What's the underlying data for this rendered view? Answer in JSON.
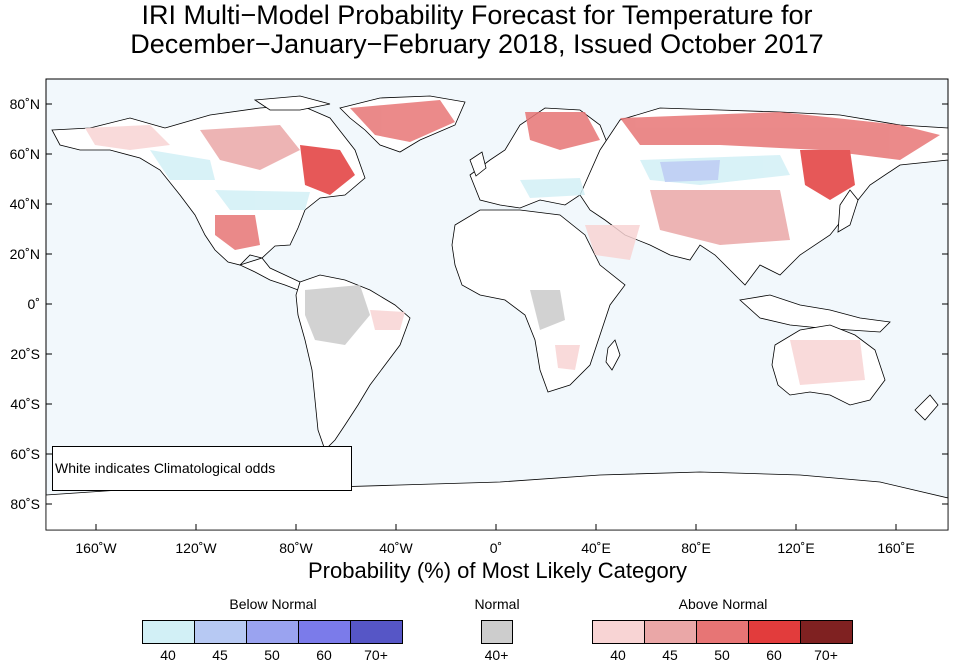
{
  "title": {
    "line1": "IRI Multi−Model Probability Forecast for Temperature for",
    "line2": "December−January−February 2018, Issued October 2017"
  },
  "axes": {
    "lat_labels": [
      "80˚N",
      "60˚N",
      "40˚N",
      "20˚N",
      "0˚",
      "20˚S",
      "40˚S",
      "60˚S",
      "80˚S"
    ],
    "lon_labels": [
      "160˚W",
      "120˚W",
      "80˚W",
      "40˚W",
      "0˚",
      "40˚E",
      "80˚E",
      "120˚E",
      "160˚E"
    ]
  },
  "note": "White indicates Climatological odds",
  "legend": {
    "title": "Probability (%) of Most Likely Category",
    "below": {
      "label": "Below Normal",
      "ticks": [
        "40",
        "45",
        "50",
        "60",
        "70+"
      ],
      "colors": [
        "#d2f0f6",
        "#b7c9f3",
        "#9aa3f0",
        "#7b7bea",
        "#5656c6"
      ]
    },
    "normal": {
      "label": "Normal",
      "ticks": [
        "40+"
      ],
      "colors": [
        "#cdcdcd"
      ]
    },
    "above": {
      "label": "Above Normal",
      "ticks": [
        "40",
        "45",
        "50",
        "60",
        "70+"
      ],
      "colors": [
        "#f8d4d4",
        "#eaa7a7",
        "#e77575",
        "#e23c3c",
        "#7f2121"
      ]
    }
  },
  "colors": {
    "ocean": "#f2f8fc",
    "land": "#ffffff"
  }
}
